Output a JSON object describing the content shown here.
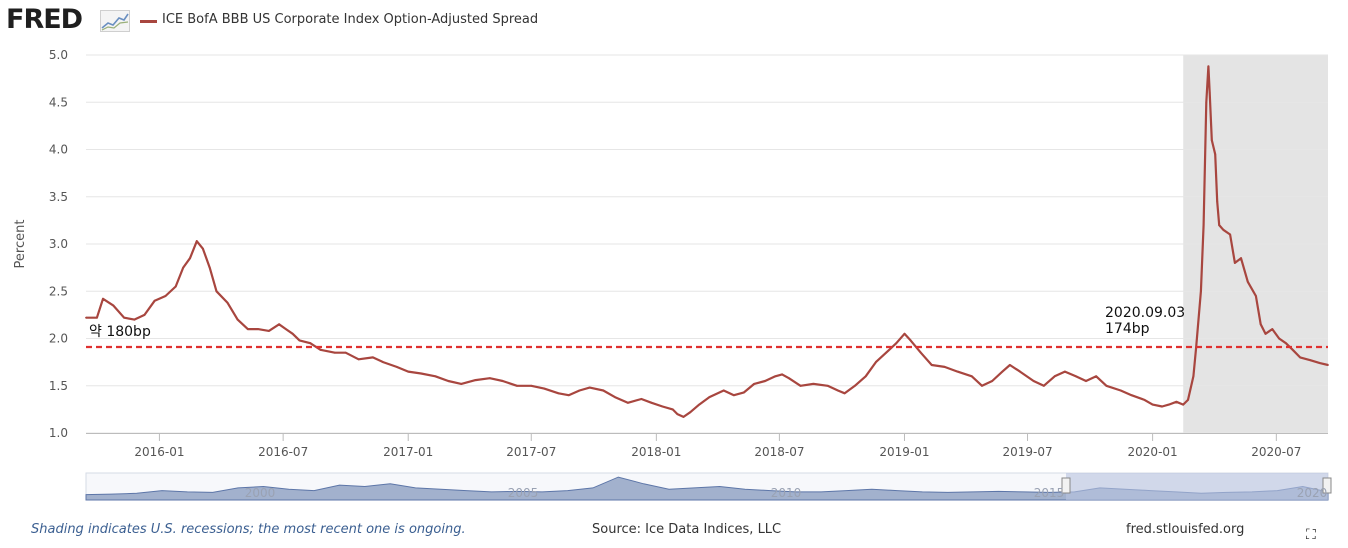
{
  "header": {
    "logo_text": "FRED",
    "logo_mark": "trend-line-graph-icon",
    "series_label": "ICE BofA BBB US Corporate Index Option-Adjusted Spread",
    "series_color": "#a8463f"
  },
  "chart_data": {
    "type": "line",
    "ylabel": "Percent",
    "ylim": [
      1.0,
      5.0
    ],
    "y_ticks": [
      "1.0",
      "1.5",
      "2.0",
      "2.5",
      "3.0",
      "3.5",
      "4.0",
      "4.5",
      "5.0"
    ],
    "x_range": [
      "2015-09-15",
      "2020-09-15"
    ],
    "x_ticks": [
      {
        "label": "2016-01",
        "date": "2016-01-01"
      },
      {
        "label": "2016-07",
        "date": "2016-07-01"
      },
      {
        "label": "2017-01",
        "date": "2017-01-01"
      },
      {
        "label": "2017-07",
        "date": "2017-07-01"
      },
      {
        "label": "2018-01",
        "date": "2018-01-01"
      },
      {
        "label": "2018-07",
        "date": "2018-07-01"
      },
      {
        "label": "2019-01",
        "date": "2019-01-01"
      },
      {
        "label": "2019-07",
        "date": "2019-07-01"
      },
      {
        "label": "2020-01",
        "date": "2020-01-01"
      },
      {
        "label": "2020-07",
        "date": "2020-07-01"
      }
    ],
    "grid": "horizontal",
    "recession": {
      "start": "2020-02-15",
      "end": "2020-09-15",
      "color": "#e4e4e4"
    },
    "series": [
      {
        "color": "#a8463f",
        "points": [
          [
            "2015-09-15",
            2.22
          ],
          [
            "2015-10-01",
            2.22
          ],
          [
            "2015-10-10",
            2.42
          ],
          [
            "2015-10-25",
            2.35
          ],
          [
            "2015-11-10",
            2.22
          ],
          [
            "2015-11-25",
            2.2
          ],
          [
            "2015-12-10",
            2.25
          ],
          [
            "2015-12-25",
            2.4
          ],
          [
            "2016-01-10",
            2.45
          ],
          [
            "2016-01-25",
            2.55
          ],
          [
            "2016-02-05",
            2.75
          ],
          [
            "2016-02-15",
            2.85
          ],
          [
            "2016-02-25",
            3.03
          ],
          [
            "2016-03-05",
            2.95
          ],
          [
            "2016-03-15",
            2.75
          ],
          [
            "2016-03-25",
            2.5
          ],
          [
            "2016-04-10",
            2.38
          ],
          [
            "2016-04-25",
            2.2
          ],
          [
            "2016-05-10",
            2.1
          ],
          [
            "2016-05-25",
            2.1
          ],
          [
            "2016-06-10",
            2.08
          ],
          [
            "2016-06-25",
            2.15
          ],
          [
            "2016-07-05",
            2.1
          ],
          [
            "2016-07-15",
            2.05
          ],
          [
            "2016-07-25",
            1.98
          ],
          [
            "2016-08-10",
            1.95
          ],
          [
            "2016-08-25",
            1.88
          ],
          [
            "2016-09-15",
            1.85
          ],
          [
            "2016-10-01",
            1.85
          ],
          [
            "2016-10-20",
            1.78
          ],
          [
            "2016-11-10",
            1.8
          ],
          [
            "2016-11-25",
            1.75
          ],
          [
            "2016-12-15",
            1.7
          ],
          [
            "2017-01-01",
            1.65
          ],
          [
            "2017-01-20",
            1.63
          ],
          [
            "2017-02-10",
            1.6
          ],
          [
            "2017-03-01",
            1.55
          ],
          [
            "2017-03-20",
            1.52
          ],
          [
            "2017-04-10",
            1.56
          ],
          [
            "2017-05-01",
            1.58
          ],
          [
            "2017-05-20",
            1.55
          ],
          [
            "2017-06-10",
            1.5
          ],
          [
            "2017-07-01",
            1.5
          ],
          [
            "2017-07-20",
            1.47
          ],
          [
            "2017-08-10",
            1.42
          ],
          [
            "2017-08-25",
            1.4
          ],
          [
            "2017-09-10",
            1.45
          ],
          [
            "2017-09-25",
            1.48
          ],
          [
            "2017-10-15",
            1.45
          ],
          [
            "2017-11-01",
            1.38
          ],
          [
            "2017-11-20",
            1.32
          ],
          [
            "2017-12-10",
            1.36
          ],
          [
            "2017-12-25",
            1.32
          ],
          [
            "2018-01-10",
            1.28
          ],
          [
            "2018-01-25",
            1.25
          ],
          [
            "2018-02-01",
            1.2
          ],
          [
            "2018-02-10",
            1.17
          ],
          [
            "2018-02-20",
            1.22
          ],
          [
            "2018-03-05",
            1.3
          ],
          [
            "2018-03-20",
            1.38
          ],
          [
            "2018-04-10",
            1.45
          ],
          [
            "2018-04-25",
            1.4
          ],
          [
            "2018-05-10",
            1.43
          ],
          [
            "2018-05-25",
            1.52
          ],
          [
            "2018-06-10",
            1.55
          ],
          [
            "2018-06-25",
            1.6
          ],
          [
            "2018-07-05",
            1.62
          ],
          [
            "2018-07-15",
            1.58
          ],
          [
            "2018-08-01",
            1.5
          ],
          [
            "2018-08-20",
            1.52
          ],
          [
            "2018-09-10",
            1.5
          ],
          [
            "2018-09-25",
            1.45
          ],
          [
            "2018-10-05",
            1.42
          ],
          [
            "2018-10-20",
            1.5
          ],
          [
            "2018-11-05",
            1.6
          ],
          [
            "2018-11-20",
            1.75
          ],
          [
            "2018-12-05",
            1.85
          ],
          [
            "2018-12-20",
            1.95
          ],
          [
            "2019-01-01",
            2.05
          ],
          [
            "2019-01-10",
            1.98
          ],
          [
            "2019-01-25",
            1.85
          ],
          [
            "2019-02-10",
            1.72
          ],
          [
            "2019-03-01",
            1.7
          ],
          [
            "2019-03-20",
            1.65
          ],
          [
            "2019-04-10",
            1.6
          ],
          [
            "2019-04-25",
            1.5
          ],
          [
            "2019-05-10",
            1.55
          ],
          [
            "2019-05-25",
            1.65
          ],
          [
            "2019-06-05",
            1.72
          ],
          [
            "2019-06-20",
            1.65
          ],
          [
            "2019-07-10",
            1.55
          ],
          [
            "2019-07-25",
            1.5
          ],
          [
            "2019-08-10",
            1.6
          ],
          [
            "2019-08-25",
            1.65
          ],
          [
            "2019-09-10",
            1.6
          ],
          [
            "2019-09-25",
            1.55
          ],
          [
            "2019-10-10",
            1.6
          ],
          [
            "2019-10-25",
            1.5
          ],
          [
            "2019-11-15",
            1.45
          ],
          [
            "2019-12-01",
            1.4
          ],
          [
            "2019-12-20",
            1.35
          ],
          [
            "2020-01-01",
            1.3
          ],
          [
            "2020-01-15",
            1.28
          ],
          [
            "2020-01-25",
            1.3
          ],
          [
            "2020-02-05",
            1.33
          ],
          [
            "2020-02-15",
            1.3
          ],
          [
            "2020-02-22",
            1.35
          ],
          [
            "2020-03-01",
            1.6
          ],
          [
            "2020-03-05",
            1.9
          ],
          [
            "2020-03-12",
            2.5
          ],
          [
            "2020-03-16",
            3.2
          ],
          [
            "2020-03-20",
            4.5
          ],
          [
            "2020-03-23",
            4.88
          ],
          [
            "2020-03-25",
            4.6
          ],
          [
            "2020-03-28",
            4.1
          ],
          [
            "2020-04-02",
            3.95
          ],
          [
            "2020-04-05",
            3.45
          ],
          [
            "2020-04-08",
            3.2
          ],
          [
            "2020-04-14",
            3.15
          ],
          [
            "2020-04-24",
            3.1
          ],
          [
            "2020-05-01",
            2.8
          ],
          [
            "2020-05-10",
            2.85
          ],
          [
            "2020-05-20",
            2.6
          ],
          [
            "2020-06-01",
            2.45
          ],
          [
            "2020-06-08",
            2.15
          ],
          [
            "2020-06-15",
            2.05
          ],
          [
            "2020-06-25",
            2.1
          ],
          [
            "2020-07-05",
            2.0
          ],
          [
            "2020-07-15",
            1.95
          ],
          [
            "2020-07-25",
            1.88
          ],
          [
            "2020-08-05",
            1.8
          ],
          [
            "2020-08-20",
            1.77
          ],
          [
            "2020-09-03",
            1.74
          ],
          [
            "2020-09-15",
            1.72
          ]
        ]
      }
    ],
    "reference_line": {
      "value": 1.91,
      "color": "#e03030",
      "style": "dashed"
    },
    "annotations": [
      {
        "text": "약 180bp"
      },
      {
        "text": "2020.09.03"
      },
      {
        "text": "174bp"
      }
    ],
    "navigator": {
      "labels": [
        "2000",
        "2005",
        "2010",
        "2015",
        "2020"
      ],
      "fill_color": "#5d76a8",
      "selection_color": "#b7c3e0"
    }
  },
  "footer": {
    "recession_note": "Shading indicates U.S. recessions; the most recent one is ongoing.",
    "source": "Source: Ice Data Indices, LLC",
    "site": "fred.stlouisfed.org",
    "fullscreen_icon": "fullscreen-icon"
  }
}
